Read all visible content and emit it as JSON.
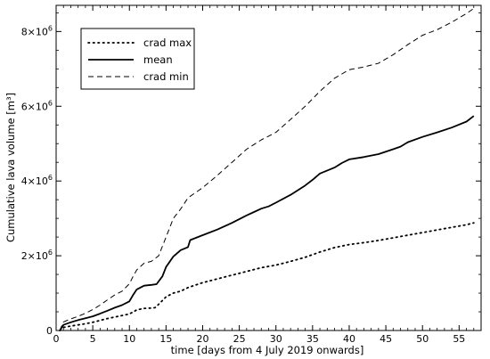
{
  "chart_data": {
    "type": "line",
    "title": "",
    "xlabel": "time [days from 4 July 2019 onwards]",
    "ylabel": "Cumulative lava volume [m³]",
    "xlim": [
      0,
      58
    ],
    "ylim": [
      0,
      8700000
    ],
    "x_ticks": [
      0,
      5,
      10,
      15,
      20,
      25,
      30,
      35,
      40,
      45,
      50,
      55
    ],
    "x_tick_labels": [
      "0",
      "5",
      "10",
      "15",
      "20",
      "25",
      "30",
      "35",
      "40",
      "45",
      "50",
      "55"
    ],
    "y_ticks": [
      {
        "value": 0,
        "mantissa": "0",
        "exponent": ""
      },
      {
        "value": 2000000,
        "mantissa": "2×10",
        "exponent": "6"
      },
      {
        "value": 4000000,
        "mantissa": "4×10",
        "exponent": "6"
      },
      {
        "value": 6000000,
        "mantissa": "6×10",
        "exponent": "6"
      },
      {
        "value": 8000000,
        "mantissa": "8×10",
        "exponent": "6"
      }
    ],
    "grid": false,
    "legend_position": "top-left",
    "series": [
      {
        "name": "crad max",
        "style": "dotted",
        "color": "#000000",
        "x": [
          0.5,
          1,
          2,
          3,
          4,
          5,
          6,
          7,
          8,
          9,
          10,
          11,
          12,
          13,
          13.5,
          14,
          15,
          16,
          17,
          18,
          20,
          22,
          24,
          26,
          28,
          30,
          32,
          34,
          36,
          38,
          40,
          42,
          44,
          46,
          48,
          50,
          52,
          54,
          56,
          57
        ],
        "y": [
          0,
          80000,
          120000,
          150000,
          180000,
          220000,
          270000,
          320000,
          360000,
          400000,
          440000,
          550000,
          590000,
          600000,
          610000,
          700000,
          900000,
          1000000,
          1050000,
          1150000,
          1280000,
          1380000,
          1480000,
          1580000,
          1680000,
          1750000,
          1850000,
          1960000,
          2100000,
          2220000,
          2300000,
          2350000,
          2410000,
          2480000,
          2550000,
          2620000,
          2690000,
          2760000,
          2830000,
          2880000
        ]
      },
      {
        "name": "mean",
        "style": "solid",
        "color": "#000000",
        "x": [
          0.5,
          1,
          2,
          3,
          4,
          5,
          6,
          7,
          8,
          9,
          10,
          10.5,
          11,
          12,
          13,
          13.7,
          14.5,
          15,
          16,
          17,
          18,
          18.3,
          20,
          22,
          24,
          26,
          27,
          28,
          29,
          30,
          32,
          34,
          35,
          36,
          38,
          39,
          40,
          42,
          44,
          46,
          47,
          48,
          50,
          52,
          54,
          56,
          57
        ],
        "y": [
          0,
          150000,
          220000,
          280000,
          330000,
          380000,
          450000,
          530000,
          610000,
          680000,
          780000,
          950000,
          1100000,
          1200000,
          1220000,
          1240000,
          1450000,
          1700000,
          1980000,
          2150000,
          2230000,
          2420000,
          2550000,
          2700000,
          2880000,
          3080000,
          3170000,
          3260000,
          3320000,
          3420000,
          3630000,
          3880000,
          4030000,
          4200000,
          4360000,
          4480000,
          4580000,
          4640000,
          4720000,
          4850000,
          4920000,
          5040000,
          5180000,
          5300000,
          5430000,
          5590000,
          5740000
        ]
      },
      {
        "name": "crad min",
        "style": "dashed",
        "color": "#000000",
        "x": [
          0.5,
          1,
          2,
          3,
          4,
          5,
          6,
          7,
          8,
          9,
          10,
          10.5,
          11,
          12,
          13,
          14,
          15,
          16,
          17,
          18,
          20,
          22,
          24,
          26,
          28,
          30,
          32,
          34,
          36,
          38,
          40,
          42,
          44,
          46,
          48,
          50,
          52,
          54,
          56,
          57
        ],
        "y": [
          0,
          230000,
          310000,
          380000,
          460000,
          560000,
          680000,
          820000,
          950000,
          1050000,
          1250000,
          1450000,
          1620000,
          1800000,
          1850000,
          2000000,
          2500000,
          3000000,
          3250000,
          3550000,
          3820000,
          4150000,
          4500000,
          4850000,
          5100000,
          5300000,
          5650000,
          6000000,
          6400000,
          6750000,
          6980000,
          7050000,
          7150000,
          7380000,
          7650000,
          7900000,
          8050000,
          8250000,
          8480000,
          8620000
        ]
      }
    ]
  }
}
